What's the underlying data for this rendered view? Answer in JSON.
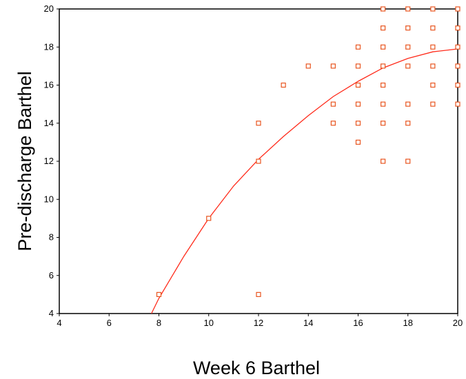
{
  "chart_data": {
    "type": "scatter",
    "title": "",
    "xlabel": "Week 6 Barthel",
    "ylabel": "Pre-discharge Barthel",
    "xlim": [
      4,
      20
    ],
    "ylim": [
      4,
      20
    ],
    "x_ticks": [
      4,
      6,
      8,
      10,
      12,
      14,
      16,
      18,
      20
    ],
    "y_ticks": [
      4,
      6,
      8,
      10,
      12,
      14,
      16,
      18,
      20
    ],
    "grid": false,
    "marker": "open-square",
    "point_color": "#e8541e",
    "line_color": "#ff2a1a",
    "points": [
      [
        8,
        5
      ],
      [
        10,
        9
      ],
      [
        12,
        5
      ],
      [
        12,
        12
      ],
      [
        12,
        14
      ],
      [
        13,
        16
      ],
      [
        14,
        17
      ],
      [
        15,
        14
      ],
      [
        15,
        15
      ],
      [
        15,
        17
      ],
      [
        16,
        13
      ],
      [
        16,
        14
      ],
      [
        16,
        15
      ],
      [
        16,
        16
      ],
      [
        16,
        17
      ],
      [
        16,
        18
      ],
      [
        17,
        12
      ],
      [
        17,
        14
      ],
      [
        17,
        15
      ],
      [
        17,
        16
      ],
      [
        17,
        17
      ],
      [
        17,
        18
      ],
      [
        17,
        19
      ],
      [
        17,
        20
      ],
      [
        18,
        12
      ],
      [
        18,
        14
      ],
      [
        18,
        15
      ],
      [
        18,
        17
      ],
      [
        18,
        18
      ],
      [
        18,
        19
      ],
      [
        18,
        20
      ],
      [
        19,
        15
      ],
      [
        19,
        16
      ],
      [
        19,
        17
      ],
      [
        19,
        18
      ],
      [
        19,
        19
      ],
      [
        19,
        20
      ],
      [
        20,
        15
      ],
      [
        20,
        16
      ],
      [
        20,
        17
      ],
      [
        20,
        18
      ],
      [
        20,
        19
      ],
      [
        20,
        20
      ]
    ],
    "fit_line": [
      [
        7.7,
        4
      ],
      [
        8,
        4.8
      ],
      [
        9,
        7.0
      ],
      [
        10,
        9.0
      ],
      [
        11,
        10.7
      ],
      [
        12,
        12.1
      ],
      [
        13,
        13.3
      ],
      [
        14,
        14.4
      ],
      [
        15,
        15.4
      ],
      [
        16,
        16.2
      ],
      [
        17,
        16.9
      ],
      [
        18,
        17.4
      ],
      [
        19,
        17.75
      ],
      [
        20,
        17.9
      ]
    ]
  }
}
